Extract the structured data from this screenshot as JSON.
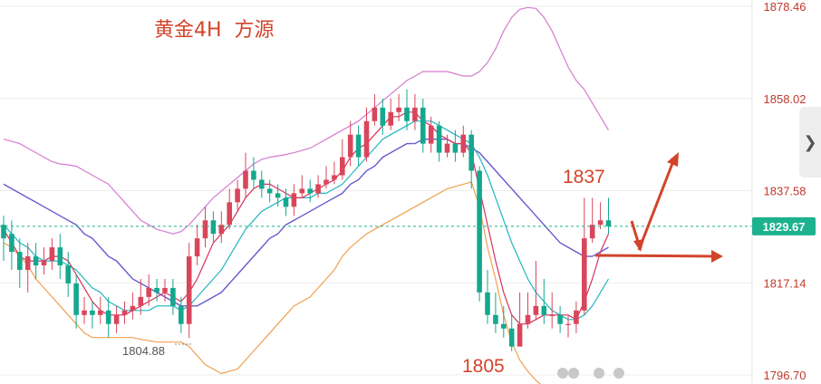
{
  "header": {
    "title": "黄金4H  方源"
  },
  "annotations": {
    "high": "1837",
    "low": "1805",
    "low_marker": "1804.88"
  },
  "price_tag": {
    "value": "1829.67"
  },
  "colors": {
    "up": "#d9465b",
    "down": "#14a88e",
    "ma_fast": "#d6325a",
    "ma_mid": "#20b5c0",
    "ma_slow": "#6a5acd",
    "band_upper": "#d67bd0",
    "band_lower": "#f0a050",
    "arrow": "#d2442a",
    "price_tag": "#1db28e"
  },
  "chart_data": {
    "type": "candlestick",
    "title": "黄金4H  方源",
    "y_axis": {
      "side": "right",
      "ticks": [
        1878.46,
        1858.02,
        1837.58,
        1817.14,
        1796.7
      ],
      "range": [
        1796.7,
        1878.46
      ]
    },
    "current_price": 1829.67,
    "candles": [
      [
        1830,
        1827,
        1832,
        1822
      ],
      [
        1828,
        1824,
        1831,
        1820
      ],
      [
        1824,
        1820,
        1827,
        1816
      ],
      [
        1820,
        1823,
        1826,
        1815
      ],
      [
        1823,
        1821,
        1826,
        1818
      ],
      [
        1821,
        1822,
        1825,
        1819
      ],
      [
        1822,
        1825,
        1827,
        1820
      ],
      [
        1825,
        1821,
        1828,
        1818
      ],
      [
        1821,
        1817,
        1824,
        1814
      ],
      [
        1817,
        1810,
        1819,
        1807
      ],
      [
        1810,
        1811,
        1814,
        1808
      ],
      [
        1811,
        1810,
        1813,
        1807
      ],
      [
        1810,
        1811,
        1814,
        1808
      ],
      [
        1811,
        1808,
        1814,
        1805
      ],
      [
        1808,
        1810,
        1812,
        1806
      ],
      [
        1810,
        1811,
        1813,
        1808
      ],
      [
        1811,
        1812,
        1815,
        1809
      ],
      [
        1812,
        1814,
        1818,
        1810
      ],
      [
        1814,
        1816,
        1819,
        1812
      ],
      [
        1816,
        1815,
        1818,
        1813
      ],
      [
        1815,
        1816,
        1818,
        1813
      ],
      [
        1816,
        1812,
        1818,
        1810
      ],
      [
        1812,
        1808,
        1814,
        1806
      ],
      [
        1808,
        1823,
        1826,
        1804.88
      ],
      [
        1823,
        1827,
        1830,
        1821
      ],
      [
        1827,
        1831,
        1834,
        1825
      ],
      [
        1831,
        1828,
        1833,
        1826
      ],
      [
        1828,
        1830,
        1833,
        1826
      ],
      [
        1830,
        1835,
        1838,
        1829
      ],
      [
        1835,
        1838,
        1840,
        1833
      ],
      [
        1838,
        1842,
        1846,
        1836
      ],
      [
        1842,
        1840,
        1845,
        1838
      ],
      [
        1840,
        1838,
        1842,
        1836
      ],
      [
        1838,
        1837,
        1840,
        1835
      ],
      [
        1837,
        1836,
        1839,
        1834
      ],
      [
        1836,
        1834,
        1838,
        1832
      ],
      [
        1834,
        1837,
        1839,
        1832
      ],
      [
        1837,
        1838,
        1841,
        1836
      ],
      [
        1838,
        1837,
        1840,
        1835
      ],
      [
        1837,
        1839,
        1841,
        1836
      ],
      [
        1839,
        1840,
        1843,
        1838
      ],
      [
        1840,
        1841,
        1844,
        1839
      ],
      [
        1841,
        1845,
        1849,
        1840
      ],
      [
        1845,
        1850,
        1853,
        1843
      ],
      [
        1850,
        1845,
        1852,
        1843
      ],
      [
        1845,
        1853,
        1856,
        1844
      ],
      [
        1853,
        1856,
        1859,
        1852
      ],
      [
        1856,
        1852,
        1858,
        1850
      ],
      [
        1852,
        1855,
        1858,
        1851
      ],
      [
        1855,
        1856,
        1859,
        1853
      ],
      [
        1856,
        1853,
        1860,
        1851
      ],
      [
        1853,
        1856,
        1859,
        1851
      ],
      [
        1856,
        1848,
        1858,
        1846
      ],
      [
        1848,
        1852,
        1854,
        1846
      ],
      [
        1852,
        1846,
        1853,
        1844
      ],
      [
        1846,
        1848,
        1850,
        1845
      ],
      [
        1848,
        1846,
        1851,
        1844
      ],
      [
        1846,
        1850,
        1852,
        1845
      ],
      [
        1850,
        1842,
        1851,
        1838
      ],
      [
        1842,
        1815,
        1843,
        1813
      ],
      [
        1815,
        1810,
        1820,
        1808
      ],
      [
        1810,
        1808,
        1815,
        1806
      ],
      [
        1808,
        1807,
        1812,
        1805
      ],
      [
        1807,
        1803,
        1810,
        1802
      ],
      [
        1803,
        1808,
        1815,
        1804
      ],
      [
        1808,
        1810,
        1815,
        1807
      ],
      [
        1810,
        1812,
        1822,
        1809
      ],
      [
        1812,
        1810,
        1818,
        1808
      ],
      [
        1810,
        1810,
        1815,
        1807
      ],
      [
        1810,
        1808,
        1812,
        1806
      ],
      [
        1808,
        1808,
        1810,
        1805
      ],
      [
        1808,
        1811,
        1813,
        1806
      ],
      [
        1811,
        1827,
        1836,
        1810
      ],
      [
        1827,
        1830,
        1836,
        1826
      ],
      [
        1830,
        1831,
        1835,
        1829
      ],
      [
        1831,
        1829.67,
        1836,
        1828
      ]
    ],
    "ma_fast": [
      1829,
      1826,
      1823,
      1822,
      1822,
      1822,
      1823,
      1823,
      1822,
      1819,
      1816,
      1813,
      1811,
      1810,
      1810,
      1810,
      1811,
      1812,
      1813,
      1814,
      1815,
      1814,
      1813,
      1815,
      1818,
      1822,
      1826,
      1828,
      1830,
      1833,
      1836,
      1838,
      1839,
      1839,
      1838,
      1837,
      1836,
      1836,
      1837,
      1838,
      1839,
      1840,
      1842,
      1845,
      1847,
      1848,
      1850,
      1852,
      1854,
      1854,
      1855,
      1855,
      1853,
      1852,
      1850,
      1849,
      1848,
      1848,
      1846,
      1838,
      1830,
      1822,
      1815,
      1810,
      1808,
      1808,
      1809,
      1810,
      1810,
      1810,
      1810,
      1809,
      1813,
      1818,
      1824,
      1828
    ],
    "ma_mid": [
      1830,
      1828,
      1826,
      1825,
      1823,
      1822,
      1822,
      1822,
      1821,
      1820,
      1818,
      1816,
      1815,
      1813,
      1812,
      1811,
      1811,
      1811,
      1811,
      1812,
      1812,
      1812,
      1811,
      1812,
      1814,
      1816,
      1818,
      1820,
      1823,
      1826,
      1829,
      1831,
      1833,
      1834,
      1835,
      1836,
      1836,
      1836,
      1836,
      1837,
      1837,
      1838,
      1839,
      1841,
      1843,
      1845,
      1847,
      1849,
      1850,
      1851,
      1852,
      1853,
      1853,
      1853,
      1852,
      1851,
      1850,
      1849,
      1848,
      1845,
      1841,
      1836,
      1831,
      1826,
      1822,
      1818,
      1815,
      1813,
      1811,
      1810,
      1809,
      1809,
      1810,
      1812,
      1815,
      1818
    ],
    "ma_slow": [
      1839,
      1838,
      1837,
      1836,
      1835,
      1834,
      1833,
      1832,
      1831,
      1830,
      1828,
      1827,
      1825,
      1823,
      1822,
      1820,
      1818,
      1817,
      1816,
      1815,
      1814,
      1813,
      1812,
      1812,
      1812,
      1813,
      1814,
      1815,
      1817,
      1819,
      1821,
      1823,
      1825,
      1827,
      1828,
      1830,
      1831,
      1832,
      1833,
      1834,
      1835,
      1836,
      1837,
      1839,
      1840,
      1842,
      1843,
      1845,
      1846,
      1847,
      1848,
      1848,
      1849,
      1849,
      1849,
      1849,
      1848,
      1848,
      1847,
      1846,
      1844,
      1842,
      1840,
      1838,
      1836,
      1834,
      1832,
      1830,
      1828,
      1826,
      1825,
      1824,
      1823,
      1823,
      1824,
      1825
    ],
    "band_upper": [
      1849,
      1848.5,
      1848,
      1847,
      1846,
      1845,
      1844,
      1843.5,
      1843.3,
      1843,
      1842,
      1841,
      1840,
      1839,
      1837,
      1835,
      1833,
      1831,
      1830,
      1829,
      1828.5,
      1828,
      1828.5,
      1830,
      1832,
      1834,
      1836,
      1837.5,
      1839,
      1840.5,
      1842,
      1843.5,
      1844.5,
      1845,
      1845.3,
      1845.6,
      1846,
      1846.5,
      1847,
      1848,
      1849,
      1850,
      1851,
      1852,
      1853,
      1854.5,
      1856,
      1857.5,
      1859,
      1860.5,
      1862,
      1863,
      1864,
      1864,
      1864,
      1864,
      1863.5,
      1863,
      1863,
      1864,
      1866,
      1869,
      1873,
      1876,
      1877.8,
      1878.2,
      1878,
      1876,
      1873,
      1869,
      1865,
      1862,
      1860,
      1857,
      1854,
      1851
    ],
    "band_lower": [
      1826,
      1825,
      1823,
      1821,
      1818,
      1816,
      1814,
      1812,
      1810,
      1808,
      1806,
      1805,
      1805,
      1805,
      1805,
      1805,
      1805,
      1804.6,
      1804.3,
      1804,
      1804,
      1804,
      1804,
      1803,
      1801,
      1799,
      1798,
      1797,
      1797.5,
      1798,
      1800,
      1802,
      1804,
      1806,
      1808,
      1810,
      1812,
      1813,
      1814,
      1816,
      1818,
      1820,
      1823,
      1825,
      1826.5,
      1828,
      1829,
      1830,
      1831,
      1832,
      1833,
      1834,
      1835,
      1836,
      1837,
      1838,
      1838.5,
      1839,
      1839.5,
      1834,
      1825,
      1818,
      1810,
      1804,
      1800,
      1797.5,
      1795.5,
      1794,
      1793,
      1792.5,
      1792,
      1792
    ]
  }
}
